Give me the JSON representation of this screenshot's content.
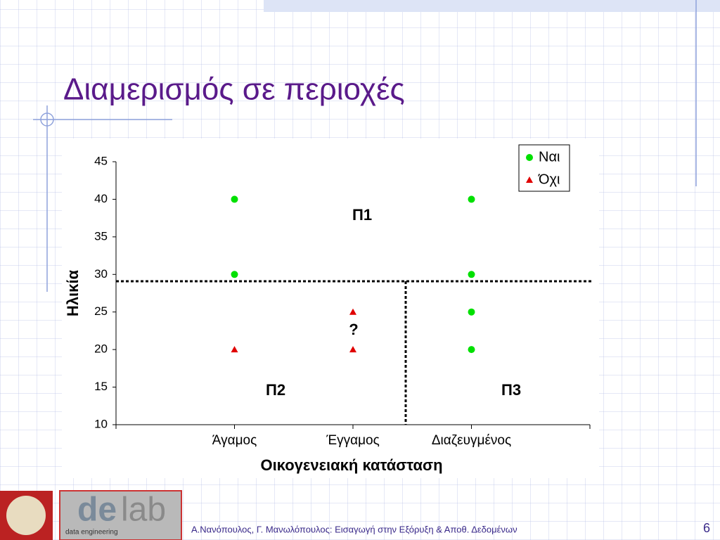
{
  "slide_title": "Διαμερισμός σε περιοχές",
  "footer": "Α.Νανόπουλος, Γ. Μανωλόπουλος: Εισαγωγή στην Εξόρυξη & Αποθ. Δεδομένων",
  "page_number": "6",
  "logo": {
    "caption": "data engineering",
    "part1": "de",
    "part2": "lab"
  },
  "chart_data": {
    "type": "scatter",
    "x_label": "Οικογενειακή κατάσταση",
    "y_label": "Ηλικία",
    "categories": [
      "Άγαμος",
      "Έγγαμος",
      "Διαζευγμένος"
    ],
    "ylim": [
      10,
      45
    ],
    "yticks": [
      10,
      15,
      20,
      25,
      30,
      35,
      40,
      45
    ],
    "legend": "top-right",
    "series": [
      {
        "name": "Ναι",
        "color": "#00e000",
        "marker": "circle",
        "x": [
          "Άγαμος",
          "Άγαμος",
          "Διαζευγμένος",
          "Διαζευγμένος",
          "Διαζευγμένος",
          "Διαζευγμένος"
        ],
        "values": [
          40,
          30,
          40,
          30,
          25,
          20
        ]
      },
      {
        "name": "Όχι",
        "color": "#e00000",
        "marker": "triangle",
        "x": [
          "Άγαμος",
          "Έγγαμος",
          "Έγγαμος"
        ],
        "values": [
          20,
          25,
          20
        ]
      }
    ],
    "annotations": [
      "Π1",
      "Π2",
      "Π3",
      "?"
    ]
  }
}
